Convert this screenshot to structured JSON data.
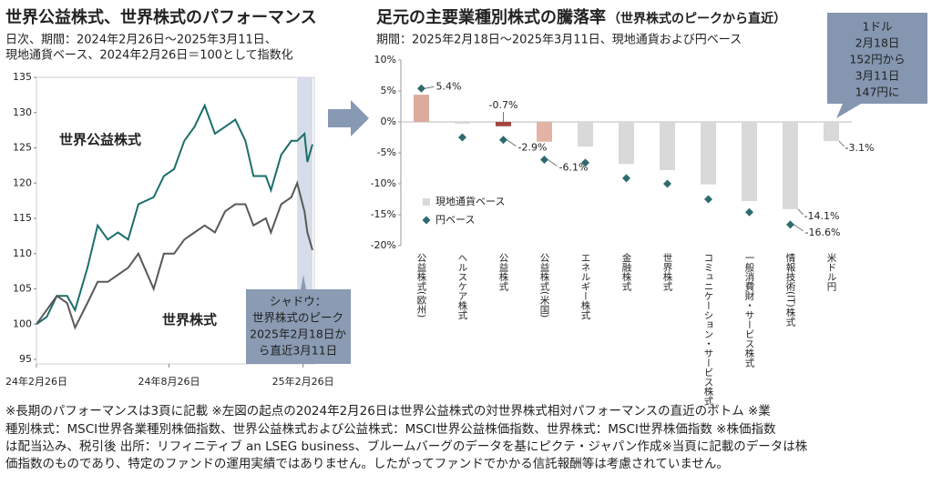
{
  "chart_data": [
    {
      "type": "line",
      "title": "世界公益株式、世界株式のパフォーマンス",
      "subtitle": [
        "日次、期間：2024年2月26日～2025年3月11日、",
        "現地通貨ベース、2024年2月26日＝100として指数化"
      ],
      "x": [
        "2024-02-26",
        "2024-03-11",
        "2024-03-25",
        "2024-04-08",
        "2024-04-19",
        "2024-05-06",
        "2024-05-20",
        "2024-06-03",
        "2024-06-17",
        "2024-07-01",
        "2024-07-15",
        "2024-08-05",
        "2024-08-19",
        "2024-09-02",
        "2024-09-16",
        "2024-09-30",
        "2024-10-14",
        "2024-10-28",
        "2024-11-11",
        "2024-11-25",
        "2024-12-09",
        "2024-12-20",
        "2025-01-06",
        "2025-01-13",
        "2025-01-27",
        "2025-02-10",
        "2025-02-18",
        "2025-02-28",
        "2025-03-04",
        "2025-03-11"
      ],
      "series": [
        {
          "name": "世界公益株式",
          "color": "#1a6e6a",
          "values": [
            100,
            101,
            104,
            104,
            102,
            108,
            114,
            112,
            113,
            112,
            117,
            118,
            121,
            122,
            126,
            128,
            131,
            127,
            128,
            129,
            126,
            121,
            121,
            119,
            124,
            126,
            126,
            127,
            123,
            125.5
          ]
        },
        {
          "name": "世界株式",
          "color": "#595959",
          "values": [
            100,
            102,
            104,
            103,
            99.5,
            103,
            106,
            106,
            107,
            108,
            110,
            105,
            110,
            110,
            112,
            113,
            114,
            113,
            116,
            117,
            117,
            114,
            115,
            113,
            117,
            118,
            120,
            116,
            113,
            110.5
          ]
        }
      ],
      "xlim": [
        "2024-02-26",
        "2025-03-11"
      ],
      "xticks": [
        {
          "value": "2024-02-26",
          "label": "24年2月26日"
        },
        {
          "value": "2024-08-26",
          "label": "24年8月26日"
        },
        {
          "value": "2025-02-26",
          "label": "25年2月26日"
        }
      ],
      "ylim": [
        95,
        135
      ],
      "yticks": [
        95,
        100,
        105,
        110,
        115,
        120,
        125,
        130,
        135
      ],
      "shade": [
        "2025-02-18",
        "2025-03-11"
      ],
      "shade_color": "#d6dce8",
      "annotation": [
        "シャドウ：",
        "世界株式のピーク",
        "2025年2月18日か",
        "ら直近3月11日"
      ],
      "grid": false
    },
    {
      "type": "bar",
      "title": "足元の主要業種別株式の騰落率",
      "title_note": "（世界株式のピークから直近）",
      "subtitle": [
        "期間：2025年2月18日～2025年3月11日、現地通貨および円ベース"
      ],
      "categories": [
        "公益株式(欧州)",
        "ヘルスケア株式",
        "公益株式",
        "公益株式(米国)",
        "エネルギー株式",
        "金融株式",
        "世界株式",
        "コミュニケーション・サービス株式",
        "一般消費財・サービス株式",
        "情報技術(IT)株式",
        "米ドル円"
      ],
      "series": [
        {
          "name": "現地通貨ベース",
          "type": "bar",
          "color": "#d9d9d9",
          "colors": [
            "#dcab9d",
            "#d9d9d9",
            "#a3443d",
            "#e3b3a6",
            "#d9d9d9",
            "#d9d9d9",
            "#d9d9d9",
            "#d9d9d9",
            "#d9d9d9",
            "#d9d9d9",
            "#d9d9d9"
          ],
          "values": [
            4.4,
            -0.3,
            -0.7,
            -3.2,
            -4.0,
            -6.8,
            -7.8,
            -10.1,
            -12.8,
            -14.1,
            -3.1
          ],
          "value_labels": [
            null,
            null,
            "-0.7%",
            null,
            null,
            null,
            null,
            null,
            null,
            "-14.1%",
            "-3.1%"
          ]
        },
        {
          "name": "円ベース",
          "type": "scatter",
          "marker": "diamond",
          "color": "#2d6b70",
          "values": [
            5.4,
            -2.5,
            -2.9,
            -6.1,
            -6.6,
            -9.1,
            -10.0,
            -12.5,
            -14.6,
            -16.6,
            null
          ],
          "value_labels": [
            "5.4%",
            null,
            "-2.9%",
            "-6.1%",
            null,
            null,
            null,
            null,
            null,
            "-16.6%",
            null
          ]
        }
      ],
      "ylim": [
        -20,
        10
      ],
      "yticks": [
        {
          "value": -20,
          "label": "-20%"
        },
        {
          "value": -15,
          "label": "-15%"
        },
        {
          "value": -10,
          "label": "-10%"
        },
        {
          "value": -5,
          "label": "-5%"
        },
        {
          "value": 0,
          "label": "0%"
        },
        {
          "value": 5,
          "label": "5%"
        },
        {
          "value": 10,
          "label": "10%"
        }
      ],
      "annotation": [
        "1ドル",
        "2月18日",
        "152円から",
        "3月11日",
        "147円に"
      ],
      "grid": false
    }
  ],
  "notes": [
    "※長期のパフォーマンスは3頁に記載 ※左図の起点の2024年2月26日は世界公益株式の対世界株式相対パフォーマンスの直近のボトム ※業",
    "種別株式：MSCI世界各業種別株価指数、世界公益株式および公益株式：MSCI世界公益株価指数、世界株式：MSCI世界株価指数 ※株価指数",
    "は配当込み、税引後 出所：リフィニティブ an LSEG business、ブルームバーグのデータを基にピクテ・ジャパン作成 "
  ],
  "disclaimer": [
    "※当頁に記載のデータは株",
    "価指数のものであり、特定のファンドの運用実績ではありません。したがってファンドでかかる信託報酬等は考慮されていません。"
  ]
}
